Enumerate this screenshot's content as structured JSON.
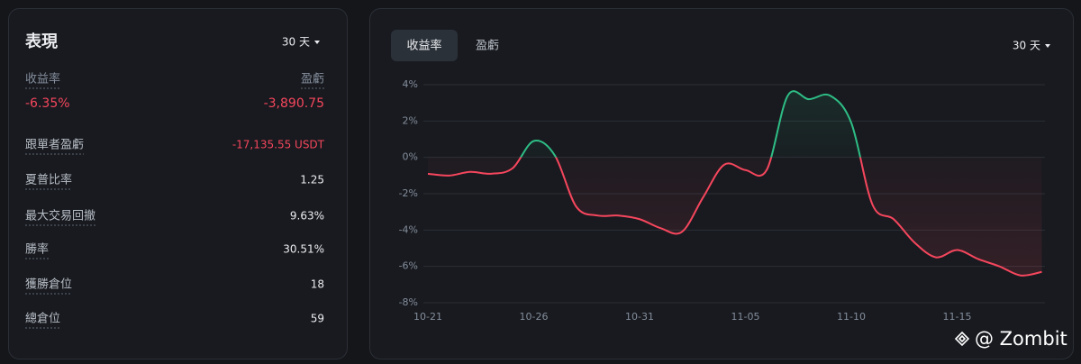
{
  "performance": {
    "title": "表現",
    "period": "30 天",
    "summary": [
      {
        "label": "收益率",
        "value": "-6.35%"
      },
      {
        "label": "盈虧",
        "value": "-3,890.75"
      }
    ],
    "stats": [
      {
        "label": "跟單者盈虧",
        "value": "-17,135.55 USDT"
      },
      {
        "label": "夏普比率",
        "value": "1.25"
      },
      {
        "label": "最大交易回撤",
        "value": "9.63%"
      },
      {
        "label": "勝率",
        "value": "30.51%"
      },
      {
        "label": "獲勝倉位",
        "value": "18"
      },
      {
        "label": "總倉位",
        "value": "59"
      }
    ]
  },
  "chart_panel": {
    "tabs": [
      "收益率",
      "盈虧"
    ],
    "period": "30 天"
  },
  "chart_data": {
    "type": "line",
    "categories": [
      "10-21",
      null,
      null,
      null,
      null,
      "10-26",
      null,
      null,
      null,
      null,
      "10-31",
      null,
      null,
      null,
      null,
      "11-05",
      null,
      null,
      null,
      null,
      "11-10",
      null,
      null,
      null,
      null,
      "11-15",
      null,
      null,
      null,
      null
    ],
    "values": [
      -0.9,
      -1.0,
      -0.8,
      -0.9,
      -0.6,
      0.9,
      0.1,
      -2.7,
      -3.2,
      -3.2,
      -3.4,
      -3.9,
      -4.1,
      -2.2,
      -0.4,
      -0.7,
      -0.7,
      3.4,
      3.2,
      3.4,
      1.9,
      -2.6,
      -3.4,
      -4.7,
      -5.5,
      -5.1,
      -5.6,
      -6.0,
      -6.5,
      -6.3
    ],
    "colors": {
      "positive": "#2ebd85",
      "negative": "#f6465d"
    },
    "ylim": [
      -8,
      4
    ],
    "yticks": [
      {
        "value": -8,
        "label": "-8%"
      },
      {
        "value": -6,
        "label": "-6%"
      },
      {
        "value": -4,
        "label": "-4%"
      },
      {
        "value": -2,
        "label": "-2%"
      },
      {
        "value": 0,
        "label": "0%"
      },
      {
        "value": 2,
        "label": "2%"
      },
      {
        "value": 4,
        "label": "4%"
      }
    ],
    "grid": true
  },
  "watermark": "@ Zombit"
}
